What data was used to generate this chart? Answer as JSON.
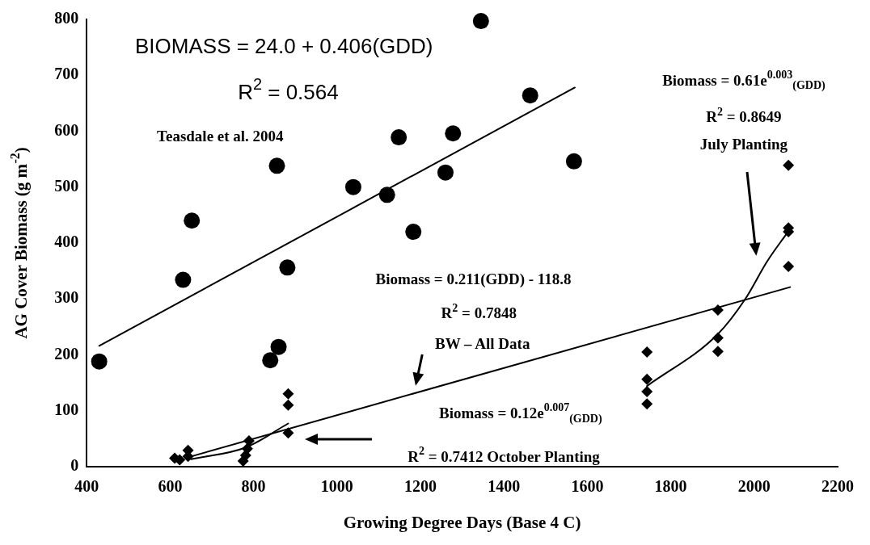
{
  "chart_data": {
    "type": "scatter",
    "xlabel": "Growing Degree Days (Base 4 C)",
    "ylabel": "AG Cover Biomass (g m$^{-2}$)",
    "xlim": [
      400,
      2200
    ],
    "xticks": [
      400,
      600,
      800,
      1000,
      1200,
      1400,
      1600,
      1800,
      2000,
      2200
    ],
    "ylim": [
      0,
      800
    ],
    "yticks": [
      0,
      100,
      200,
      300,
      400,
      500,
      600,
      700,
      800
    ],
    "grid": false,
    "legend": false,
    "series": [
      {
        "type": "scatter",
        "marker": "circle",
        "color": "#000000",
        "x": [
          430,
          631,
          652,
          840,
          856,
          860,
          881,
          1039,
          1120,
          1148,
          1183,
          1260,
          1278,
          1345,
          1463,
          1568
        ],
        "values": [
          188,
          334,
          440,
          190,
          538,
          214,
          356,
          500,
          486,
          589,
          420,
          526,
          596,
          797,
          664,
          546
        ]
      },
      {
        "type": "scatter",
        "marker": "diamond",
        "color": "#000000",
        "x": [
          611,
          623,
          643,
          643,
          775,
          781,
          785,
          789,
          883,
          883,
          883,
          1743,
          1743,
          1743,
          1743,
          1913,
          1913,
          1913,
          2082,
          2082,
          2082,
          2082
        ],
        "values": [
          15,
          12,
          29,
          18,
          10,
          20,
          32,
          46,
          130,
          110,
          60,
          205,
          156,
          134,
          112,
          280,
          230,
          206,
          539,
          427,
          420,
          358
        ]
      },
      {
        "type": "line",
        "marker": "none",
        "line_style": "solid",
        "color": "#000000",
        "x": [
          430,
          1570
        ],
        "values": [
          216,
          678
        ]
      },
      {
        "type": "line",
        "marker": "none",
        "line_style": "solid",
        "color": "#000000",
        "x": [
          650,
          2086
        ],
        "values": [
          18,
          321
        ]
      },
      {
        "type": "line",
        "marker": "none",
        "line_style": "solid",
        "color": "#000000",
        "x": [
          650,
          781,
          883
        ],
        "values": [
          13,
          34,
          77
        ]
      },
      {
        "type": "line",
        "marker": "none",
        "line_style": "solid",
        "color": "#000000",
        "x": [
          1743,
          1913,
          1978,
          2031,
          2082
        ],
        "values": [
          144,
          237,
          299,
          367,
          421
        ]
      }
    ],
    "annotations": [
      "BIOMASS = 24.0 + 0.406(GDD)",
      "R$^{2}$ = 0.564",
      "Teasdale et al. 2004",
      "Biomass = 0.61e$^{0.003}$$_{(GDD)}$",
      "R$^{2}$ = 0.8649",
      "July Planting",
      "Biomass = 0.211(GDD) - 118.8",
      "R$^{2}$ = 0.7848",
      "BW – All Data",
      "Biomass = 0.12e$^{0.007}$$_{(GDD)}$",
      "R$^{2}$ = 0.7412 October Planting"
    ]
  }
}
